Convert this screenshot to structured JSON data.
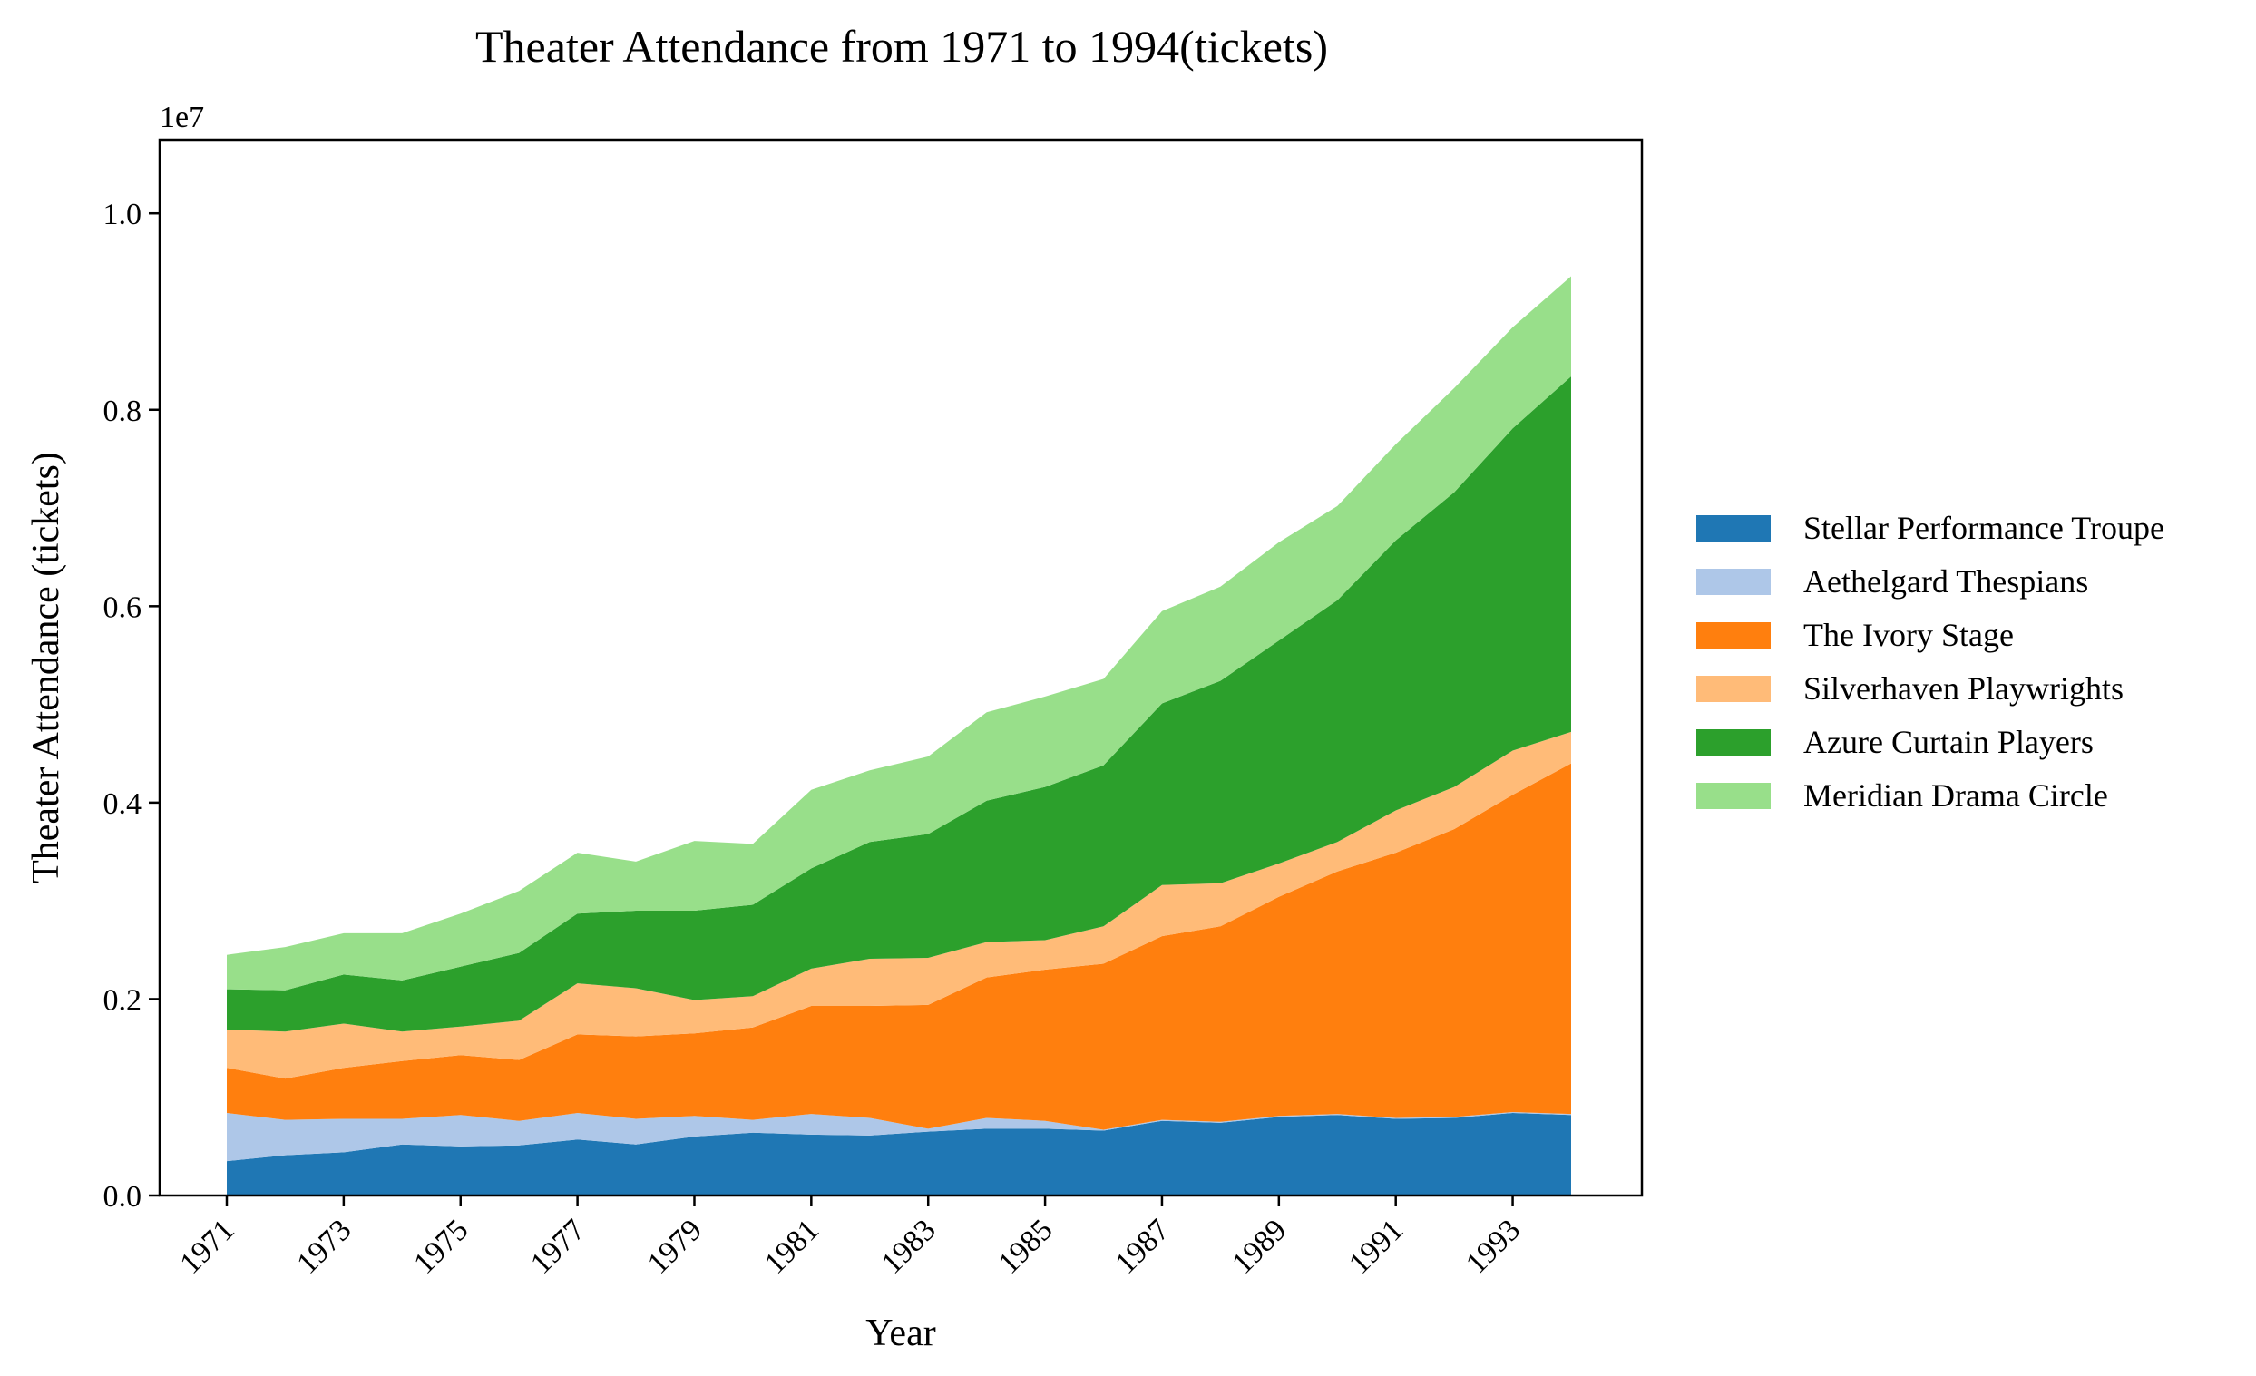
{
  "chart_data": {
    "type": "area",
    "stacked": true,
    "title": "Theater Attendance from 1971 to 1994(tickets)",
    "xlabel": "Year",
    "ylabel": "Theater Attendance (tickets)",
    "y_offset_label": "1e7",
    "ylim": [
      0,
      10750000
    ],
    "y_ticks": [
      0,
      2000000,
      4000000,
      6000000,
      8000000,
      10000000
    ],
    "y_tick_labels": [
      "0.0",
      "0.2",
      "0.4",
      "0.6",
      "0.8",
      "1.0"
    ],
    "x_tick_labels": [
      "1971",
      "1973",
      "1975",
      "1977",
      "1979",
      "1981",
      "1983",
      "1985",
      "1987",
      "1989",
      "1991",
      "1993"
    ],
    "x": [
      1971,
      1972,
      1973,
      1974,
      1975,
      1976,
      1977,
      1978,
      1979,
      1980,
      1981,
      1982,
      1983,
      1984,
      1985,
      1986,
      1987,
      1988,
      1989,
      1990,
      1991,
      1992,
      1993,
      1994
    ],
    "legend_position": "right",
    "series": [
      {
        "name": "Stellar Performance Troupe",
        "color": "#1f77b4",
        "values": [
          350000,
          410000,
          440000,
          520000,
          500000,
          510000,
          570000,
          520000,
          600000,
          640000,
          620000,
          610000,
          650000,
          680000,
          680000,
          660000,
          760000,
          740000,
          800000,
          820000,
          780000,
          790000,
          840000,
          820000
        ]
      },
      {
        "name": "Aethelgard Thespians",
        "color": "#aec7e8",
        "values": [
          490000,
          360000,
          340000,
          260000,
          320000,
          250000,
          270000,
          260000,
          210000,
          130000,
          210000,
          180000,
          30000,
          110000,
          80000,
          10000,
          10000,
          10000,
          10000,
          10000,
          10000,
          10000,
          10000,
          10000
        ]
      },
      {
        "name": "The Ivory Stage",
        "color": "#ff7f0e",
        "values": [
          460000,
          420000,
          520000,
          590000,
          610000,
          620000,
          800000,
          840000,
          840000,
          940000,
          1100000,
          1140000,
          1260000,
          1430000,
          1540000,
          1690000,
          1870000,
          1990000,
          2230000,
          2470000,
          2700000,
          2930000,
          3230000,
          3570000
        ]
      },
      {
        "name": "Silverhaven Playwrights",
        "color": "#ffbb78",
        "values": [
          390000,
          480000,
          450000,
          300000,
          290000,
          400000,
          520000,
          490000,
          340000,
          320000,
          380000,
          480000,
          480000,
          360000,
          300000,
          380000,
          520000,
          440000,
          340000,
          300000,
          430000,
          430000,
          450000,
          320000
        ]
      },
      {
        "name": "Azure Curtain Players",
        "color": "#2ca02c",
        "values": [
          410000,
          420000,
          500000,
          520000,
          610000,
          690000,
          710000,
          790000,
          910000,
          930000,
          1020000,
          1190000,
          1260000,
          1440000,
          1560000,
          1640000,
          1850000,
          2060000,
          2270000,
          2460000,
          2750000,
          3000000,
          3280000,
          3620000
        ]
      },
      {
        "name": "Meridian Drama Circle",
        "color": "#98df8a",
        "values": [
          350000,
          440000,
          420000,
          480000,
          540000,
          630000,
          620000,
          500000,
          710000,
          620000,
          800000,
          730000,
          790000,
          900000,
          920000,
          880000,
          940000,
          960000,
          1000000,
          960000,
          980000,
          1060000,
          1030000,
          1020000
        ]
      }
    ]
  }
}
